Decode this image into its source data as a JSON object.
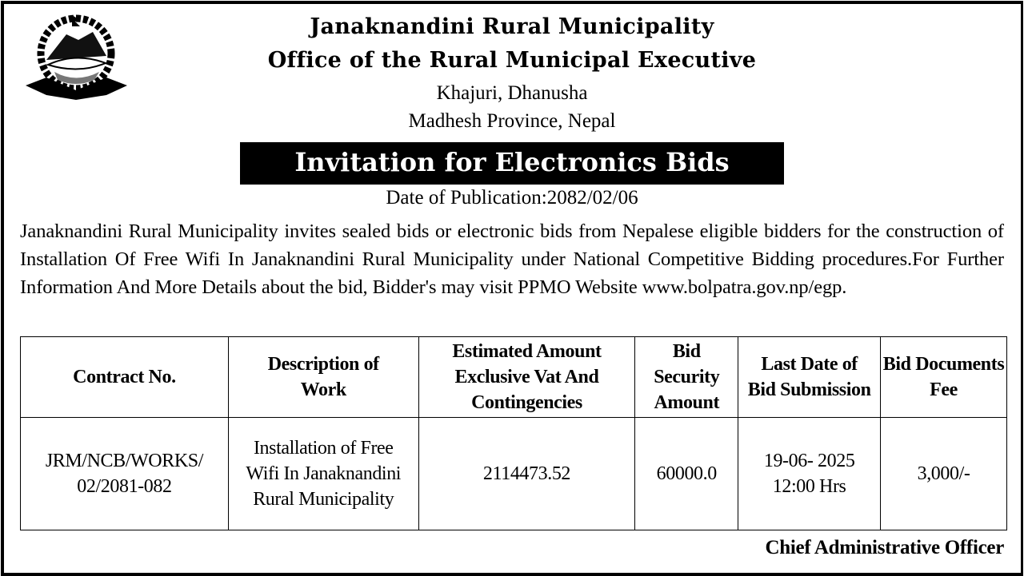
{
  "header": {
    "org_name": "Janaknandini Rural Municipality",
    "office": "Office of the Rural Municipal Executive",
    "address_line1": "Khajuri, Dhanusha",
    "address_line2": "Madhesh Province, Nepal",
    "logo": "nepal-government-emblem"
  },
  "notice": {
    "title": "Invitation for Electronics Bids",
    "publication_date": "Date of Publication:2082/02/06",
    "body": "Janaknandini Rural Municipality invites sealed bids or electronic bids from Nepalese eligible bidders for the construction of Installation Of Free Wifi In Janaknandini Rural Municipality under National Competitive Bidding procedures.For Further Information And More Details about the bid, Bidder's may visit PPMO Website www.bolpatra.gov.np/egp."
  },
  "table": {
    "columns": [
      "Contract No.",
      "Description of Work",
      "Estimated Amount Exclusive Vat And Contingencies",
      "Bid Security Amount",
      "Last Date of Bid Submission",
      "Bid Documents Fee"
    ],
    "rows": [
      [
        "JRM/NCB/WORKS/ 02/2081-082",
        "Installation of Free Wifi In Janaknandini Rural Municipality",
        "2114473.52",
        "60000.0",
        "19-06- 2025 12:00 Hrs",
        "3,000/-"
      ]
    ]
  },
  "signature": "Chief Administrative Officer"
}
